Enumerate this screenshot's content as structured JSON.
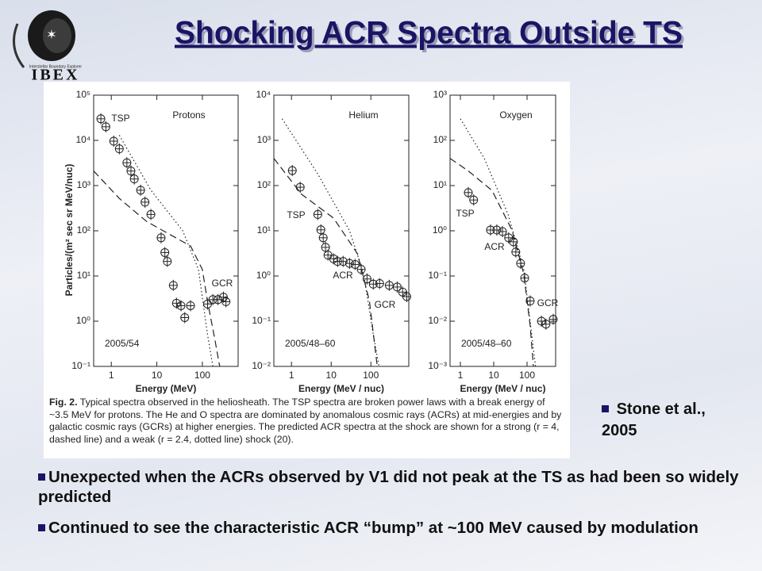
{
  "header": {
    "title": "Shocking ACR Spectra Outside TS",
    "logo_text": "IBEX",
    "logo_subtitle": "Interstellar Boundary Explorer"
  },
  "figure": {
    "y_label": "Particles/(m² sec sr MeV/nuc)",
    "panels": [
      {
        "title": "Protons",
        "date": "2005/54",
        "x_label": "Energy (MeV)",
        "labels": [
          "TSP",
          "GCR"
        ],
        "xlim": [
          0.41,
          610
        ],
        "ylim": [
          0.1,
          100000
        ],
        "xticks": [
          1,
          10,
          100
        ],
        "yticks": [
          {
            "value": 100000,
            "label": "10⁵"
          },
          {
            "value": 10000,
            "label": "10⁴"
          },
          {
            "value": 1000,
            "label": "10³"
          },
          {
            "value": 100,
            "label": "10²"
          },
          {
            "value": 10,
            "label": "10¹"
          },
          {
            "value": 1,
            "label": "10⁰"
          },
          {
            "value": 0.1,
            "label": "10⁻¹"
          }
        ],
        "data": {
          "x": [
            0.59,
            0.76,
            1.13,
            1.5,
            2.2,
            2.7,
            3.2,
            4.4,
            5.5,
            7.4,
            12.4,
            15,
            17,
            23,
            27,
            34,
            41,
            55,
            130,
            170,
            220,
            290,
            330
          ],
          "y": [
            30000,
            20000,
            9600,
            6500,
            3200,
            2100,
            1400,
            790,
            430,
            230,
            70,
            33,
            21,
            6.2,
            2.5,
            2.2,
            1.2,
            2.2,
            2.4,
            3,
            3,
            3.4,
            2.7
          ]
        },
        "strong_shock": {
          "x": [
            0.41,
            1.5,
            6,
            55,
            100,
            130,
            180,
            240
          ],
          "y": [
            2100,
            520,
            160,
            46,
            14,
            2.7,
            0.5,
            0.1
          ]
        },
        "weak_shock": {
          "x": [
            1.5,
            7.4,
            37,
            82,
            130,
            170
          ],
          "y": [
            13000,
            790,
            100,
            14,
            0.5,
            0.1
          ]
        }
      },
      {
        "title": "Helium",
        "date": "2005/48–60",
        "x_label": "Energy (MeV / nuc)",
        "labels": [
          "TSP",
          "ACR",
          "GCR"
        ],
        "xlim": [
          0.36,
          900
        ],
        "ylim": [
          0.01,
          10000
        ],
        "xticks": [
          1,
          10,
          100
        ],
        "yticks": [
          {
            "value": 10000,
            "label": "10⁴"
          },
          {
            "value": 1000,
            "label": "10³"
          },
          {
            "value": 100,
            "label": "10²"
          },
          {
            "value": 10,
            "label": "10¹"
          },
          {
            "value": 1,
            "label": "10⁰"
          },
          {
            "value": 0.1,
            "label": "10⁻¹"
          },
          {
            "value": 0.01,
            "label": "10⁻²"
          }
        ],
        "data": {
          "x": [
            1.05,
            1.66,
            4.6,
            5.5,
            6.3,
            7.2,
            8.3,
            11.5,
            14.5,
            20,
            29,
            40,
            57,
            80,
            115,
            166,
            290,
            460,
            630,
            800
          ],
          "y": [
            215,
            92,
            23,
            10.5,
            7,
            4.3,
            2.9,
            2.4,
            2.1,
            2.1,
            1.9,
            1.8,
            1.4,
            0.86,
            0.66,
            0.68,
            0.62,
            0.57,
            0.44,
            0.35
          ]
        },
        "strong_shock": {
          "x": [
            0.36,
            1.8,
            11.5,
            46,
            92,
            145
          ],
          "y": [
            400,
            64,
            19,
            3.1,
            0.28,
            0.01
          ]
        },
        "weak_shock": {
          "x": [
            0.58,
            4.6,
            29,
            66,
            115,
            160
          ],
          "y": [
            3000,
            180,
            10,
            1.1,
            0.05,
            0.01
          ]
        }
      },
      {
        "title": "Oxygen",
        "date": "2005/48–60",
        "x_label": "Energy (MeV / nuc)",
        "labels": [
          "TSP",
          "ACR",
          "GCR"
        ],
        "xlim": [
          0.49,
          720
        ],
        "ylim": [
          0.001,
          1000
        ],
        "xticks": [
          1,
          10,
          100
        ],
        "yticks": [
          {
            "value": 1000,
            "label": "10³"
          },
          {
            "value": 100,
            "label": "10²"
          },
          {
            "value": 10,
            "label": "10¹"
          },
          {
            "value": 1,
            "label": "10⁰"
          },
          {
            "value": 0.1,
            "label": "10⁻¹"
          },
          {
            "value": 0.01,
            "label": "10⁻²"
          },
          {
            "value": 0.001,
            "label": "10⁻³"
          }
        ],
        "data": {
          "x": [
            1.73,
            2.5,
            8,
            12.4,
            18.3,
            28,
            39,
            46,
            64,
            85,
            124,
            270,
            370,
            610
          ],
          "y": [
            7,
            4.8,
            1.04,
            1.04,
            0.96,
            0.7,
            0.57,
            0.34,
            0.19,
            0.09,
            0.028,
            0.01,
            0.0086,
            0.011
          ]
        },
        "strong_shock": {
          "x": [
            0.49,
            1.73,
            8.9,
            35,
            80,
            124,
            155
          ],
          "y": [
            40,
            21,
            7.8,
            1.04,
            0.11,
            0.008,
            0.001
          ]
        },
        "weak_shock": {
          "x": [
            1,
            5.2,
            27,
            80,
            180
          ],
          "y": [
            300,
            40,
            2.3,
            0.14,
            0.001
          ]
        }
      }
    ],
    "caption_lead": "Fig. 2.",
    "caption": "Typical spectra observed in the heliosheath. The TSP spectra are broken power laws with a break energy of ~3.5 MeV for protons. The He and O spectra are dominated by anomalous cosmic rays (ACRs) at mid-energies and by galactic cosmic rays (GCRs) at higher energies. The predicted ACR spectra at the shock are shown for a strong (r = 4, dashed line) and a weak (r = 2.4, dotted line) shock (20)."
  },
  "citation": "Stone et al., 2005",
  "bullets": [
    "Unexpected when the ACRs observed by V1 did not peak at the TS as had been so widely predicted",
    "Continued to see the characteristic ACR “bump” at ~100 MeV caused by modulation"
  ]
}
